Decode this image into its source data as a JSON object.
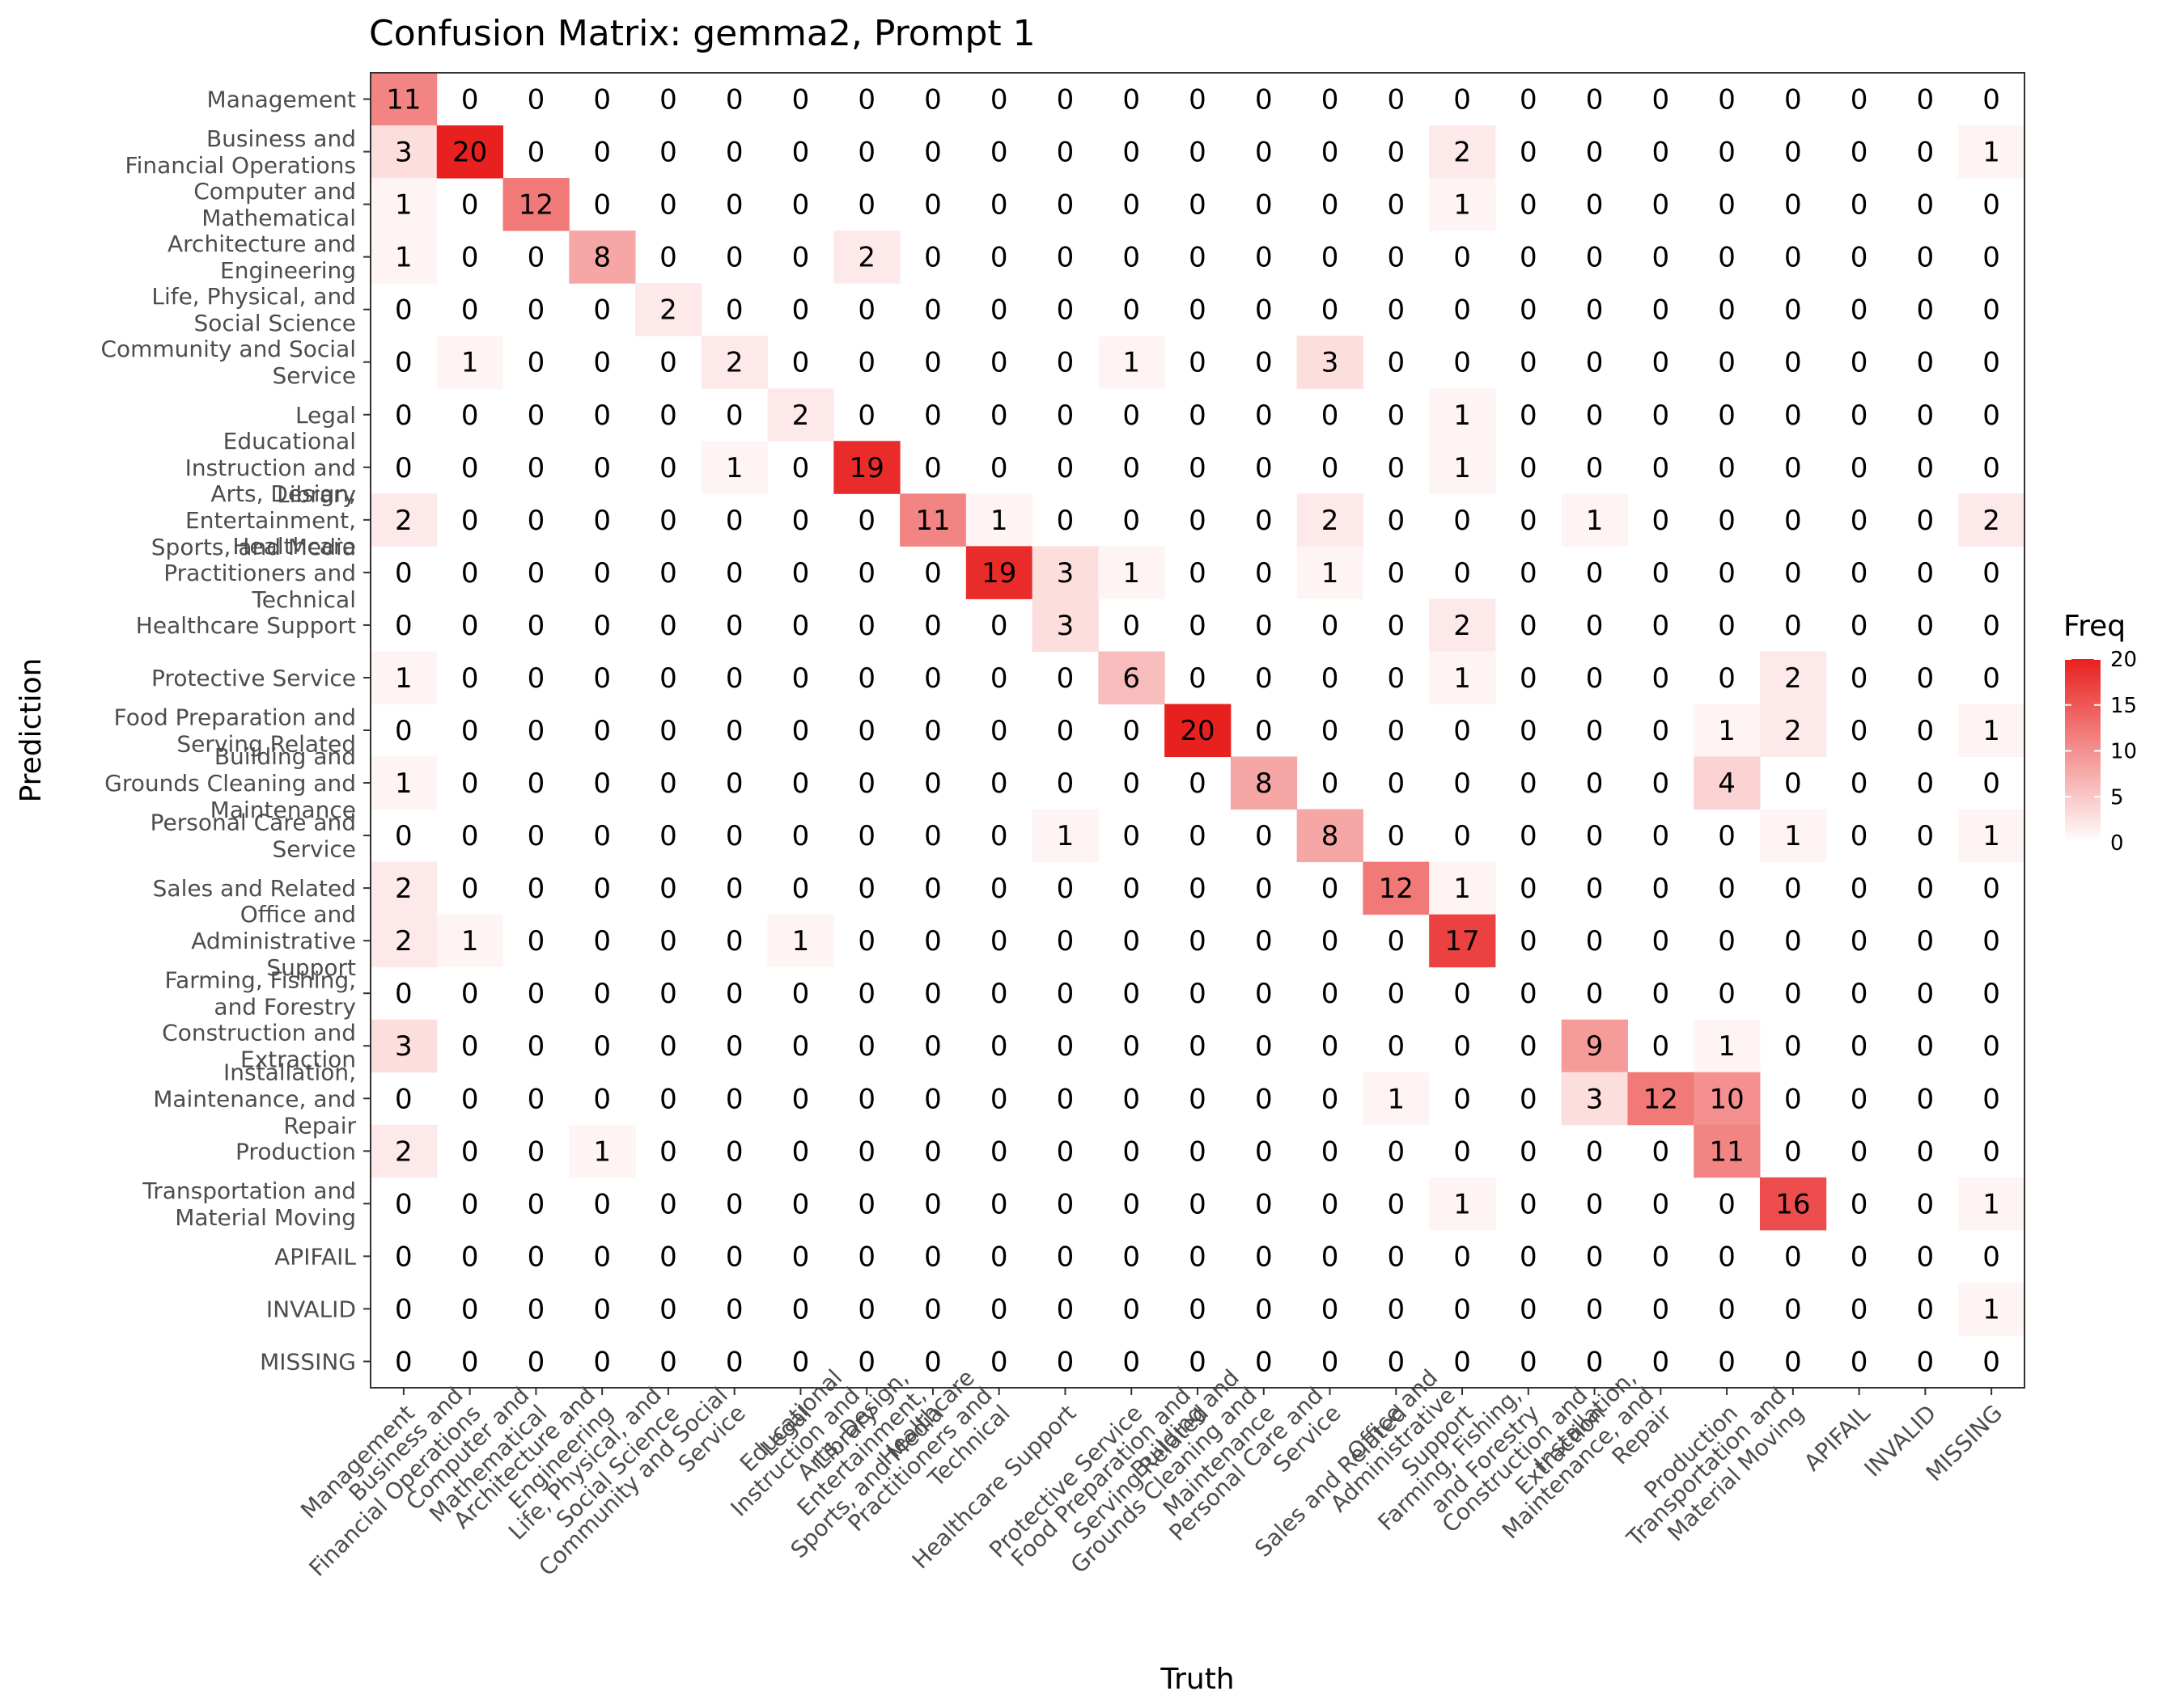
{
  "chart_data": {
    "type": "heatmap",
    "title": "Confusion Matrix: gemma2, Prompt 1",
    "xlabel": "Truth",
    "ylabel": "Prediction",
    "categories": [
      "Management",
      "Business and\nFinancial Operations",
      "Computer and\nMathematical",
      "Architecture and\nEngineering",
      "Life, Physical, and\nSocial Science",
      "Community and Social\nService",
      "Legal",
      "Educational\nInstruction and\nLibrary",
      "Arts, Design,\nEntertainment,\nSports, and Media",
      "Healthcare\nPractitioners and\nTechnical",
      "Healthcare Support",
      "Protective Service",
      "Food Preparation and\nServing Related",
      "Building and\nGrounds Cleaning and\nMaintenance",
      "Personal Care and\nService",
      "Sales and Related",
      "Office and\nAdministrative\nSupport",
      "Farming, Fishing,\nand Forestry",
      "Construction and\nExtraction",
      "Installation,\nMaintenance, and\nRepair",
      "Production",
      "Transportation and\nMaterial Moving",
      "APIFAIL",
      "INVALID",
      "MISSING"
    ],
    "matrix": [
      [
        11,
        0,
        0,
        0,
        0,
        0,
        0,
        0,
        0,
        0,
        0,
        0,
        0,
        0,
        0,
        0,
        0,
        0,
        0,
        0,
        0,
        0,
        0,
        0,
        0
      ],
      [
        3,
        20,
        0,
        0,
        0,
        0,
        0,
        0,
        0,
        0,
        0,
        0,
        0,
        0,
        0,
        0,
        2,
        0,
        0,
        0,
        0,
        0,
        0,
        0,
        1
      ],
      [
        1,
        0,
        12,
        0,
        0,
        0,
        0,
        0,
        0,
        0,
        0,
        0,
        0,
        0,
        0,
        0,
        1,
        0,
        0,
        0,
        0,
        0,
        0,
        0,
        0
      ],
      [
        1,
        0,
        0,
        8,
        0,
        0,
        0,
        2,
        0,
        0,
        0,
        0,
        0,
        0,
        0,
        0,
        0,
        0,
        0,
        0,
        0,
        0,
        0,
        0,
        0
      ],
      [
        0,
        0,
        0,
        0,
        2,
        0,
        0,
        0,
        0,
        0,
        0,
        0,
        0,
        0,
        0,
        0,
        0,
        0,
        0,
        0,
        0,
        0,
        0,
        0,
        0
      ],
      [
        0,
        1,
        0,
        0,
        0,
        2,
        0,
        0,
        0,
        0,
        0,
        1,
        0,
        0,
        3,
        0,
        0,
        0,
        0,
        0,
        0,
        0,
        0,
        0,
        0
      ],
      [
        0,
        0,
        0,
        0,
        0,
        0,
        2,
        0,
        0,
        0,
        0,
        0,
        0,
        0,
        0,
        0,
        1,
        0,
        0,
        0,
        0,
        0,
        0,
        0,
        0
      ],
      [
        0,
        0,
        0,
        0,
        0,
        1,
        0,
        19,
        0,
        0,
        0,
        0,
        0,
        0,
        0,
        0,
        1,
        0,
        0,
        0,
        0,
        0,
        0,
        0,
        0
      ],
      [
        2,
        0,
        0,
        0,
        0,
        0,
        0,
        0,
        11,
        1,
        0,
        0,
        0,
        0,
        2,
        0,
        0,
        0,
        1,
        0,
        0,
        0,
        0,
        0,
        2
      ],
      [
        0,
        0,
        0,
        0,
        0,
        0,
        0,
        0,
        0,
        19,
        3,
        1,
        0,
        0,
        1,
        0,
        0,
        0,
        0,
        0,
        0,
        0,
        0,
        0,
        0
      ],
      [
        0,
        0,
        0,
        0,
        0,
        0,
        0,
        0,
        0,
        0,
        3,
        0,
        0,
        0,
        0,
        0,
        2,
        0,
        0,
        0,
        0,
        0,
        0,
        0,
        0
      ],
      [
        1,
        0,
        0,
        0,
        0,
        0,
        0,
        0,
        0,
        0,
        0,
        6,
        0,
        0,
        0,
        0,
        1,
        0,
        0,
        0,
        0,
        2,
        0,
        0,
        0
      ],
      [
        0,
        0,
        0,
        0,
        0,
        0,
        0,
        0,
        0,
        0,
        0,
        0,
        20,
        0,
        0,
        0,
        0,
        0,
        0,
        0,
        1,
        2,
        0,
        0,
        1
      ],
      [
        1,
        0,
        0,
        0,
        0,
        0,
        0,
        0,
        0,
        0,
        0,
        0,
        0,
        8,
        0,
        0,
        0,
        0,
        0,
        0,
        4,
        0,
        0,
        0,
        0
      ],
      [
        0,
        0,
        0,
        0,
        0,
        0,
        0,
        0,
        0,
        0,
        1,
        0,
        0,
        0,
        8,
        0,
        0,
        0,
        0,
        0,
        0,
        1,
        0,
        0,
        1
      ],
      [
        2,
        0,
        0,
        0,
        0,
        0,
        0,
        0,
        0,
        0,
        0,
        0,
        0,
        0,
        0,
        12,
        1,
        0,
        0,
        0,
        0,
        0,
        0,
        0,
        0
      ],
      [
        2,
        1,
        0,
        0,
        0,
        0,
        1,
        0,
        0,
        0,
        0,
        0,
        0,
        0,
        0,
        0,
        17,
        0,
        0,
        0,
        0,
        0,
        0,
        0,
        0
      ],
      [
        0,
        0,
        0,
        0,
        0,
        0,
        0,
        0,
        0,
        0,
        0,
        0,
        0,
        0,
        0,
        0,
        0,
        0,
        0,
        0,
        0,
        0,
        0,
        0,
        0
      ],
      [
        3,
        0,
        0,
        0,
        0,
        0,
        0,
        0,
        0,
        0,
        0,
        0,
        0,
        0,
        0,
        0,
        0,
        0,
        9,
        0,
        1,
        0,
        0,
        0,
        0
      ],
      [
        0,
        0,
        0,
        0,
        0,
        0,
        0,
        0,
        0,
        0,
        0,
        0,
        0,
        0,
        0,
        1,
        0,
        0,
        3,
        12,
        10,
        0,
        0,
        0,
        0
      ],
      [
        2,
        0,
        0,
        1,
        0,
        0,
        0,
        0,
        0,
        0,
        0,
        0,
        0,
        0,
        0,
        0,
        0,
        0,
        0,
        0,
        11,
        0,
        0,
        0,
        0
      ],
      [
        0,
        0,
        0,
        0,
        0,
        0,
        0,
        0,
        0,
        0,
        0,
        0,
        0,
        0,
        0,
        0,
        1,
        0,
        0,
        0,
        0,
        16,
        0,
        0,
        1
      ],
      [
        0,
        0,
        0,
        0,
        0,
        0,
        0,
        0,
        0,
        0,
        0,
        0,
        0,
        0,
        0,
        0,
        0,
        0,
        0,
        0,
        0,
        0,
        0,
        0,
        0
      ],
      [
        0,
        0,
        0,
        0,
        0,
        0,
        0,
        0,
        0,
        0,
        0,
        0,
        0,
        0,
        0,
        0,
        0,
        0,
        0,
        0,
        0,
        0,
        0,
        0,
        1
      ],
      [
        0,
        0,
        0,
        0,
        0,
        0,
        0,
        0,
        0,
        0,
        0,
        0,
        0,
        0,
        0,
        0,
        0,
        0,
        0,
        0,
        0,
        0,
        0,
        0,
        0
      ]
    ],
    "legend": {
      "title": "Freq",
      "ticks": [
        0,
        5,
        10,
        15,
        20
      ],
      "range": [
        0,
        20
      ],
      "placement": "right"
    },
    "colors": {
      "low": "#ffffff",
      "high": "#e8211f"
    },
    "grid": false
  }
}
